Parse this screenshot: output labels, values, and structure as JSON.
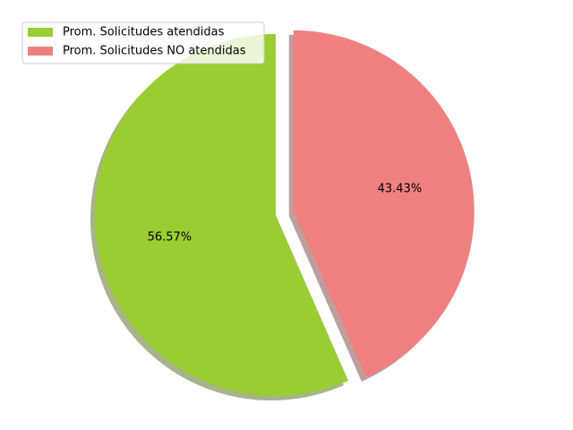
{
  "chart_data": {
    "type": "pie",
    "title": "",
    "slices": [
      {
        "label": "Prom. Solicitudes atendidas",
        "value": 56.57,
        "display": "56.57%",
        "color": "#9ACD32",
        "explode": 0
      },
      {
        "label": "Prom. Solicitudes NO atendidas",
        "value": 43.43,
        "display": "43.43%",
        "color": "#F08080",
        "explode": 0.1
      }
    ],
    "start_angle": 90,
    "direction": "counterclockwise",
    "shadow": true,
    "legend_position": "top-left"
  }
}
